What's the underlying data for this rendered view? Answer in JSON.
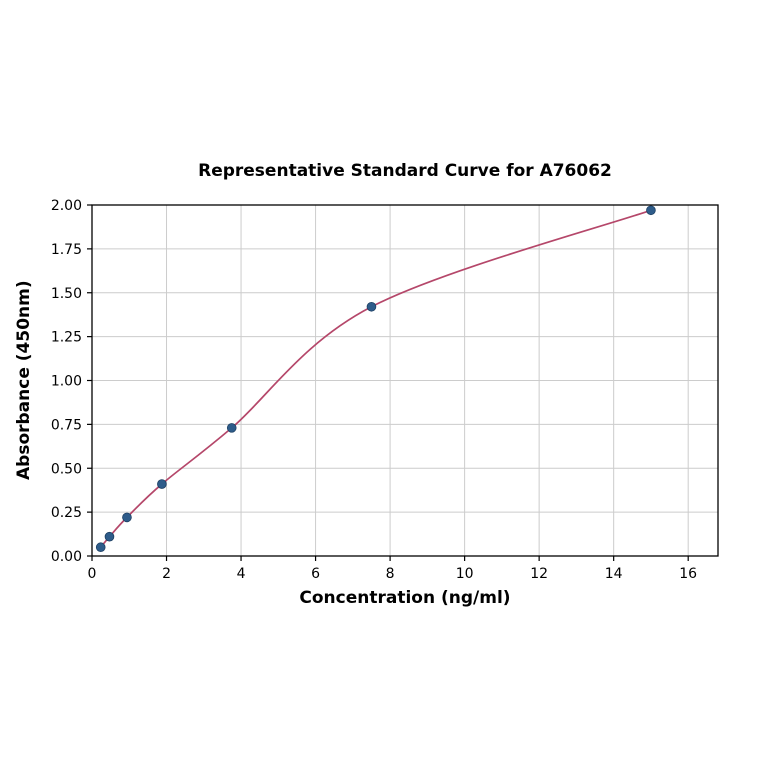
{
  "chart_data": {
    "type": "scatter",
    "title": "Representative Standard Curve for A76062",
    "xlabel": "Concentration (ng/ml)",
    "ylabel": "Absorbance (450nm)",
    "x": [
      0.234,
      0.469,
      0.938,
      1.875,
      3.75,
      7.5,
      15
    ],
    "y": [
      0.05,
      0.11,
      0.22,
      0.41,
      0.73,
      1.42,
      1.97
    ],
    "xlim": [
      0,
      16.8
    ],
    "ylim": [
      0,
      2.0
    ],
    "xticks": [
      0,
      2,
      4,
      6,
      8,
      10,
      12,
      14,
      16
    ],
    "yticks": [
      0.0,
      0.25,
      0.5,
      0.75,
      1.0,
      1.25,
      1.5,
      1.75,
      2.0
    ],
    "grid": true,
    "legend": "none",
    "colors": {
      "point": "#2e5c8a",
      "point_edge": "#1d3f62",
      "curve": "#b5476a",
      "grid": "#cccccc",
      "axis": "#000000"
    }
  }
}
